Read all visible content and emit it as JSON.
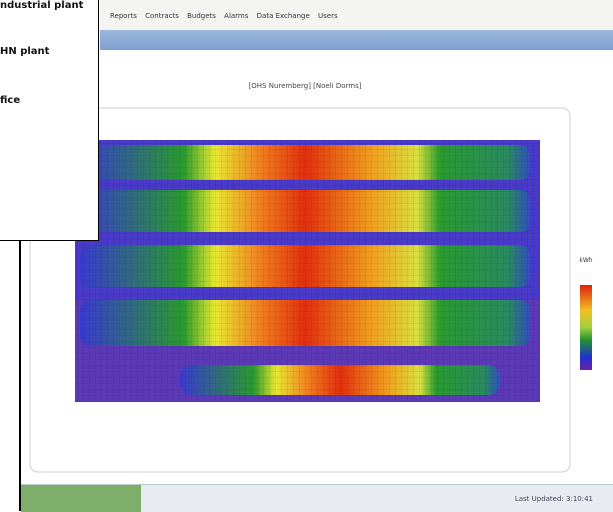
{
  "overlay": {
    "items": [
      "ndustrial plant",
      "HN plant",
      "fice"
    ]
  },
  "menu": {
    "items": [
      "Reports",
      "Contracts",
      "Budgets",
      "Alarms",
      "Data Exchange",
      "Users"
    ]
  },
  "chart": {
    "title": "[OHS Nuremberg] [Noeli Dorms]",
    "legend_title": "kWh"
  },
  "status": {
    "last_updated": "Last Updated: 3:10:41"
  }
}
